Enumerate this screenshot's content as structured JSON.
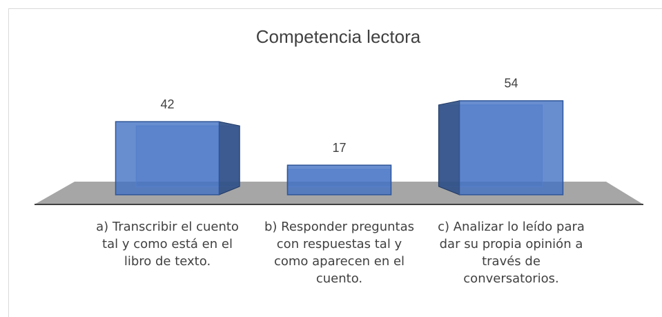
{
  "chart_data": {
    "type": "bar3d",
    "title": "Competencia lectora",
    "categories": [
      "a) Transcribir el cuento tal y como está en el libro de texto.",
      "b) Responder preguntas con respuestas tal y como aparecen en el cuento.",
      "c) Analizar lo leído para dar su propia opinión a través de conversatorios."
    ],
    "values": [
      42,
      17,
      54
    ],
    "color": "#4472c4"
  }
}
